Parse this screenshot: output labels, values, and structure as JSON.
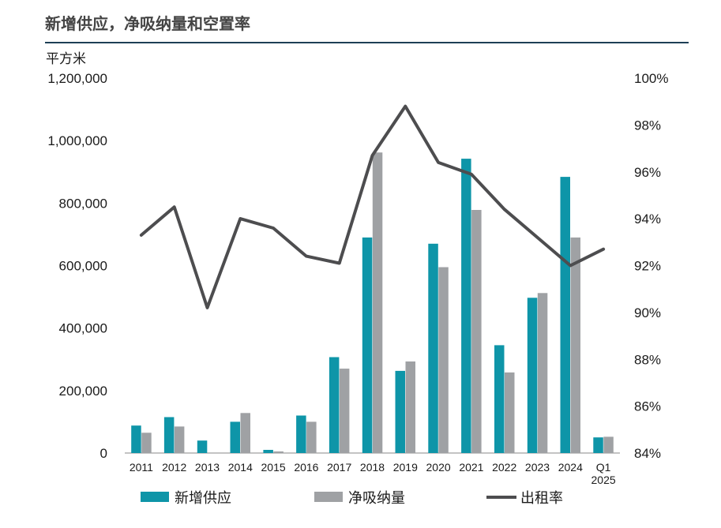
{
  "title": "新增供应，净吸纳量和空置率",
  "chart_data": {
    "type": "bar",
    "categories": [
      "2011",
      "2012",
      "2013",
      "2014",
      "2015",
      "2016",
      "2017",
      "2018",
      "2019",
      "2020",
      "2021",
      "2022",
      "2023",
      "2024",
      "Q1 2025"
    ],
    "series": [
      {
        "name": "新增供应",
        "kind": "bar",
        "axis": "left",
        "color": "#0e95a8",
        "values": [
          88000,
          115000,
          40000,
          100000,
          10000,
          120000,
          307000,
          690000,
          263000,
          670000,
          942000,
          345000,
          497000,
          884000,
          50000
        ]
      },
      {
        "name": "净吸纳量",
        "kind": "bar",
        "axis": "left",
        "color": "#9fa1a4",
        "values": [
          65000,
          85000,
          0,
          128000,
          5000,
          100000,
          270000,
          962000,
          293000,
          595000,
          778000,
          258000,
          512000,
          690000,
          52000
        ]
      },
      {
        "name": "出租率",
        "kind": "line",
        "axis": "right",
        "color": "#4d4d4f",
        "values": [
          93.3,
          94.5,
          90.2,
          94.0,
          93.6,
          92.4,
          92.1,
          96.7,
          98.8,
          96.4,
          95.9,
          94.4,
          93.2,
          92.0,
          92.7
        ]
      }
    ],
    "ylabel": "平方米",
    "ylim": [
      0,
      1200000
    ],
    "yticks": [
      "1,200,000",
      "1,000,000",
      "800,000",
      "600,000",
      "400,000",
      "200,000",
      "0"
    ],
    "y2lim": [
      84,
      100
    ],
    "y2ticks": [
      "100%",
      "98%",
      "96%",
      "94%",
      "92%",
      "90%",
      "88%",
      "86%",
      "84%"
    ],
    "legend_position": "bottom",
    "grid": false
  }
}
